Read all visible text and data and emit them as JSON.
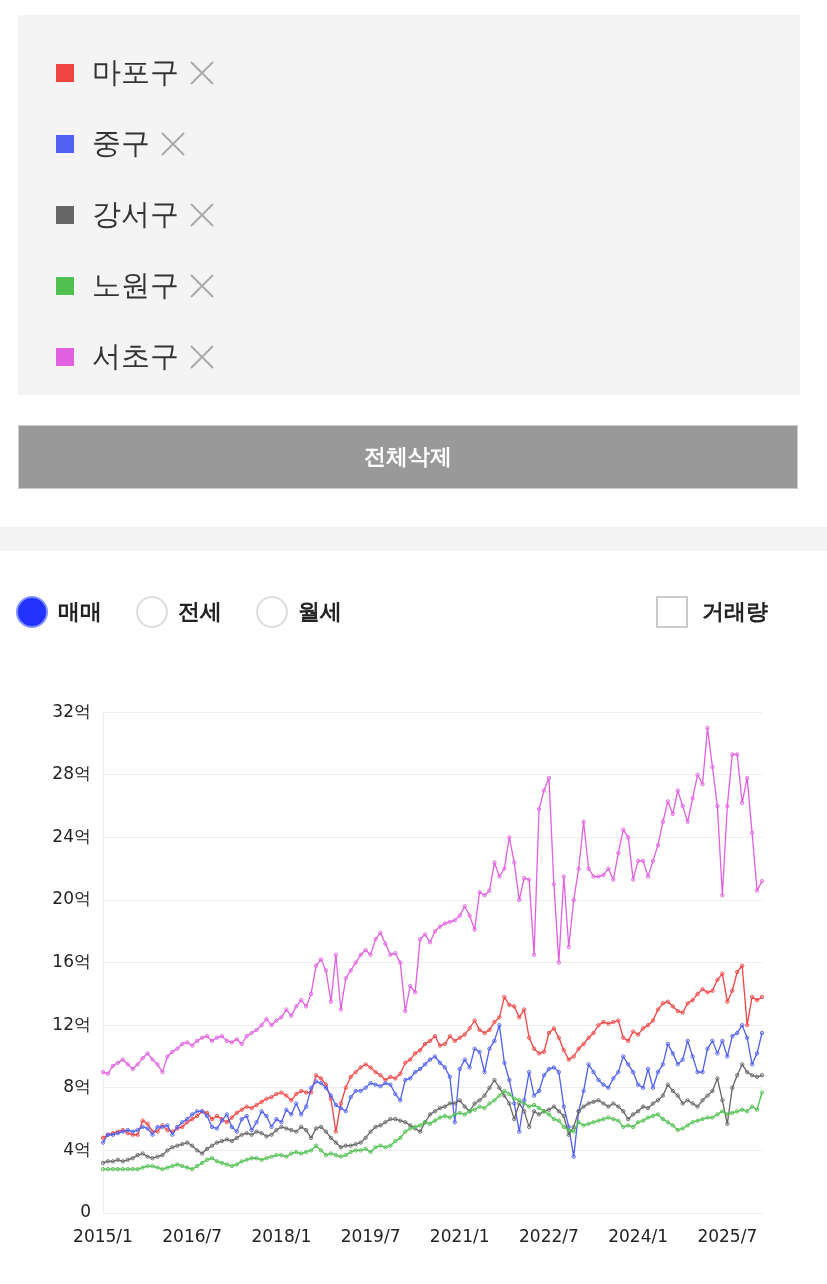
{
  "chart_data": {
    "type": "line",
    "legend": "top",
    "grid": "y",
    "marker": "circle",
    "line_style": "solid",
    "annotations": [
      "전체삭제",
      "매매",
      "전세",
      "월세",
      "거래량"
    ],
    "categories": [
      "2015/1",
      null,
      null,
      null,
      null,
      null,
      null,
      null,
      null,
      null,
      null,
      null,
      null,
      null,
      null,
      null,
      null,
      null,
      "2016/7",
      null,
      null,
      null,
      null,
      null,
      null,
      null,
      null,
      null,
      null,
      null,
      null,
      null,
      null,
      null,
      null,
      null,
      "2018/1",
      null,
      null,
      null,
      null,
      null,
      null,
      null,
      null,
      null,
      null,
      null,
      null,
      null,
      null,
      null,
      null,
      null,
      "2019/7",
      null,
      null,
      null,
      null,
      null,
      null,
      null,
      null,
      null,
      null,
      null,
      null,
      null,
      null,
      null,
      null,
      null,
      "2021/1",
      null,
      null,
      null,
      null,
      null,
      null,
      null,
      null,
      null,
      null,
      null,
      null,
      null,
      null,
      null,
      null,
      null,
      "2022/7",
      null,
      null,
      null,
      null,
      null,
      null,
      null,
      null,
      null,
      null,
      null,
      null,
      null,
      null,
      null,
      null,
      null,
      "2024/1",
      null,
      null,
      null,
      null,
      null,
      null,
      null,
      null,
      null,
      null,
      null,
      null,
      null,
      null,
      null,
      null,
      null,
      "2025/7",
      null,
      null,
      null,
      null,
      null,
      null,
      null
    ],
    "ylim": [
      0,
      32
    ],
    "yticks": [
      0,
      {
        "value": 4,
        "label": "4억"
      },
      {
        "value": 8,
        "label": "8억"
      },
      {
        "value": 12,
        "label": "12억"
      },
      {
        "value": 16,
        "label": "16억"
      },
      {
        "value": 20,
        "label": "20억"
      },
      {
        "value": 24,
        "label": "24억"
      },
      {
        "value": 28,
        "label": "28억"
      },
      {
        "value": 32,
        "label": "32억"
      }
    ],
    "series": [
      {
        "name": "마포구",
        "color": "#f04545",
        "values": [
          4.8,
          5.0,
          5.1,
          5.2,
          5.3,
          5.1,
          5.0,
          5.0,
          5.9,
          5.7,
          5.2,
          5.2,
          5.6,
          5.3,
          5.2,
          5.4,
          5.5,
          5.8,
          6.0,
          6.2,
          6.5,
          6.4,
          6.0,
          6.2,
          6.0,
          5.8,
          6.1,
          6.4,
          6.6,
          6.8,
          6.7,
          6.9,
          7.1,
          7.3,
          7.4,
          7.6,
          7.7,
          7.5,
          7.2,
          7.6,
          7.8,
          7.7,
          7.7,
          8.8,
          8.6,
          8.2,
          7.3,
          5.2,
          7.0,
          8.0,
          8.7,
          9.0,
          9.3,
          9.5,
          9.3,
          9.0,
          8.8,
          8.5,
          8.7,
          8.6,
          8.9,
          9.6,
          9.8,
          10.2,
          10.4,
          10.8,
          11.0,
          11.3,
          10.7,
          10.8,
          11.3,
          11.0,
          11.2,
          11.4,
          11.8,
          12.3,
          11.7,
          11.5,
          11.7,
          12.2,
          12.5,
          13.8,
          13.3,
          13.2,
          12.5,
          13.0,
          11.2,
          10.5,
          10.2,
          10.3,
          11.5,
          11.8,
          11.2,
          10.4,
          9.8,
          10.0,
          10.5,
          10.8,
          11.2,
          11.5,
          12.0,
          12.2,
          12.1,
          12.2,
          12.3,
          11.2,
          11.0,
          11.6,
          11.4,
          11.8,
          12.0,
          12.3,
          13.0,
          13.4,
          13.5,
          13.2,
          12.9,
          12.8,
          13.4,
          13.6,
          14.0,
          14.3,
          14.1,
          14.2,
          14.9,
          15.3,
          13.5,
          14.2,
          15.4,
          15.8,
          12.0,
          13.8,
          13.6,
          13.8
        ]
      },
      {
        "name": "중구",
        "color": "#5060f0",
        "values": [
          4.5,
          5.0,
          5.0,
          5.1,
          5.2,
          5.3,
          5.2,
          5.3,
          5.5,
          5.4,
          5.0,
          5.5,
          5.5,
          5.6,
          5.0,
          5.5,
          5.8,
          6.0,
          6.3,
          6.5,
          6.5,
          6.2,
          5.5,
          5.4,
          5.9,
          6.3,
          5.5,
          5.2,
          6.0,
          6.2,
          5.3,
          5.8,
          6.5,
          6.2,
          5.5,
          6.0,
          5.8,
          6.6,
          6.3,
          7.0,
          6.3,
          6.8,
          8.0,
          8.4,
          8.3,
          8.0,
          7.5,
          6.9,
          6.7,
          6.5,
          7.4,
          7.8,
          7.8,
          8.0,
          8.3,
          8.2,
          8.1,
          8.3,
          8.2,
          7.6,
          7.2,
          8.5,
          8.6,
          9.0,
          9.2,
          9.5,
          9.8,
          10.0,
          9.6,
          9.3,
          8.7,
          5.8,
          9.2,
          9.8,
          9.3,
          10.5,
          10.3,
          9.0,
          10.5,
          11.0,
          12.0,
          9.6,
          8.5,
          7.0,
          5.2,
          7.2,
          9.0,
          7.5,
          7.8,
          8.8,
          9.2,
          9.3,
          9.0,
          6.8,
          5.5,
          3.6,
          6.5,
          7.8,
          9.5,
          9.0,
          8.5,
          8.2,
          8.0,
          8.6,
          9.0,
          10.0,
          9.5,
          9.0,
          8.2,
          8.0,
          9.2,
          8.0,
          9.0,
          9.5,
          10.8,
          10.2,
          9.5,
          9.8,
          11.0,
          10.0,
          9.0,
          9.0,
          10.5,
          11.0,
          10.2,
          11.0,
          10.0,
          11.3,
          11.5,
          12.0,
          11.2,
          9.5,
          10.2,
          11.5
        ]
      },
      {
        "name": "강서구",
        "color": "#666666",
        "values": [
          3.2,
          3.3,
          3.3,
          3.4,
          3.3,
          3.4,
          3.5,
          3.7,
          3.8,
          3.6,
          3.5,
          3.6,
          3.7,
          4.0,
          4.2,
          4.3,
          4.4,
          4.5,
          4.3,
          4.0,
          3.8,
          4.1,
          4.3,
          4.5,
          4.6,
          4.7,
          4.6,
          4.8,
          5.0,
          5.1,
          5.0,
          5.2,
          5.1,
          4.9,
          5.0,
          5.3,
          5.5,
          5.4,
          5.3,
          5.2,
          5.5,
          5.3,
          4.8,
          5.4,
          5.5,
          5.2,
          4.8,
          4.5,
          4.2,
          4.3,
          4.3,
          4.4,
          4.5,
          4.8,
          5.2,
          5.5,
          5.6,
          5.8,
          6.0,
          6.0,
          5.9,
          5.8,
          5.6,
          5.4,
          5.2,
          5.8,
          6.3,
          6.5,
          6.7,
          6.8,
          7.0,
          7.0,
          7.2,
          6.8,
          6.5,
          7.0,
          7.2,
          7.5,
          8.0,
          8.5,
          8.0,
          7.5,
          7.0,
          6.0,
          7.0,
          6.5,
          5.5,
          6.5,
          6.3,
          6.5,
          6.6,
          6.8,
          6.5,
          6.2,
          5.0,
          5.5,
          6.5,
          6.8,
          7.0,
          7.1,
          7.2,
          7.0,
          6.8,
          7.0,
          6.8,
          6.5,
          6.0,
          6.3,
          6.5,
          6.8,
          6.7,
          7.0,
          7.2,
          7.5,
          8.2,
          7.8,
          7.5,
          7.0,
          7.2,
          7.0,
          6.8,
          7.2,
          7.5,
          7.8,
          8.6,
          7.2,
          5.7,
          8.0,
          8.8,
          9.5,
          9.0,
          8.8,
          8.7,
          8.8
        ]
      },
      {
        "name": "노원구",
        "color": "#50c050",
        "values": [
          2.8,
          2.8,
          2.8,
          2.8,
          2.8,
          2.8,
          2.8,
          2.8,
          2.9,
          3.0,
          3.0,
          2.9,
          2.8,
          2.9,
          3.0,
          3.1,
          3.0,
          2.9,
          2.8,
          3.0,
          3.2,
          3.4,
          3.5,
          3.3,
          3.2,
          3.1,
          3.0,
          3.1,
          3.3,
          3.4,
          3.5,
          3.5,
          3.4,
          3.5,
          3.6,
          3.7,
          3.7,
          3.6,
          3.8,
          3.9,
          3.8,
          3.9,
          4.0,
          4.3,
          4.0,
          3.7,
          3.8,
          3.7,
          3.6,
          3.7,
          3.9,
          4.0,
          4.0,
          4.1,
          3.9,
          4.2,
          4.3,
          4.2,
          4.3,
          4.6,
          4.8,
          5.2,
          5.4,
          5.5,
          5.6,
          5.8,
          5.7,
          5.9,
          6.1,
          6.2,
          6.1,
          6.3,
          6.4,
          6.3,
          6.5,
          6.6,
          6.8,
          6.7,
          7.0,
          7.2,
          7.5,
          7.8,
          7.6,
          7.3,
          7.2,
          7.0,
          6.8,
          6.9,
          6.7,
          6.5,
          6.3,
          6.0,
          5.9,
          5.5,
          5.3,
          5.2,
          5.8,
          5.6,
          5.7,
          5.8,
          5.9,
          6.0,
          6.1,
          6.0,
          5.9,
          5.5,
          5.6,
          5.5,
          5.8,
          5.9,
          6.1,
          6.2,
          6.3,
          6.0,
          5.8,
          5.6,
          5.3,
          5.4,
          5.6,
          5.8,
          5.9,
          6.0,
          6.1,
          6.1,
          6.3,
          6.5,
          6.3,
          6.4,
          6.5,
          6.6,
          6.5,
          6.8,
          6.6,
          7.7
        ]
      },
      {
        "name": "서초구",
        "color": "#e060e0",
        "values": [
          9.0,
          8.9,
          9.4,
          9.6,
          9.8,
          9.5,
          9.2,
          9.5,
          9.9,
          10.2,
          9.8,
          9.5,
          9.0,
          10.0,
          10.3,
          10.5,
          10.8,
          10.9,
          10.7,
          11.0,
          11.2,
          11.3,
          11.0,
          11.2,
          11.3,
          11.0,
          10.9,
          11.1,
          10.8,
          11.3,
          11.5,
          11.7,
          12.0,
          12.4,
          12.0,
          12.3,
          12.5,
          13.0,
          12.6,
          13.2,
          13.6,
          13.2,
          14.0,
          15.8,
          16.2,
          15.5,
          13.5,
          16.5,
          13.0,
          15.0,
          15.5,
          16.0,
          16.5,
          16.8,
          16.5,
          17.5,
          17.9,
          17.2,
          16.5,
          16.6,
          16.0,
          12.9,
          14.5,
          14.1,
          17.5,
          17.8,
          17.3,
          18.0,
          18.3,
          18.5,
          18.6,
          18.7,
          19.0,
          19.6,
          19.0,
          18.1,
          20.5,
          20.3,
          20.6,
          22.4,
          21.5,
          22.0,
          24.0,
          22.4,
          20.0,
          21.4,
          21.3,
          16.5,
          25.8,
          27.0,
          27.8,
          21.0,
          16.0,
          21.5,
          17.0,
          20.0,
          22.0,
          25.0,
          22.0,
          21.5,
          21.5,
          21.6,
          22.0,
          21.3,
          23.0,
          24.5,
          24.0,
          21.3,
          22.5,
          22.5,
          21.5,
          22.5,
          23.5,
          25.0,
          26.3,
          25.5,
          27.0,
          26.0,
          25.0,
          26.5,
          28.0,
          27.4,
          31.0,
          28.5,
          26.0,
          20.3,
          26.0,
          29.3,
          29.3,
          26.2,
          27.8,
          24.3,
          20.6,
          21.2
        ]
      }
    ]
  }
}
